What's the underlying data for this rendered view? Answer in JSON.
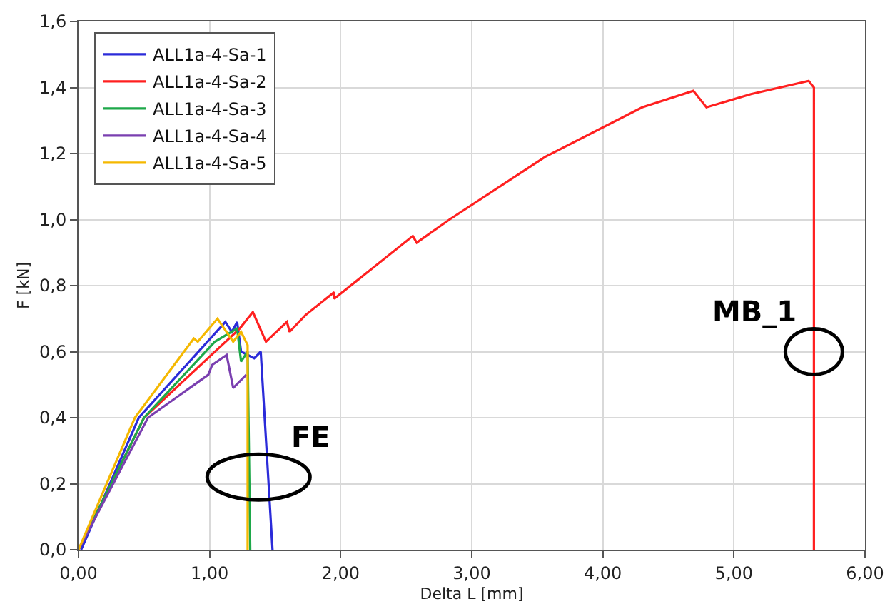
{
  "chart_data": {
    "type": "line",
    "xlabel": "Delta L [mm]",
    "ylabel": "F [kN]",
    "xlim": [
      0,
      6
    ],
    "ylim": [
      0,
      1.6
    ],
    "xticks": [
      {
        "value": 0,
        "label": "0,00"
      },
      {
        "value": 1,
        "label": "1,00"
      },
      {
        "value": 2,
        "label": "2,00"
      },
      {
        "value": 3,
        "label": "3,00"
      },
      {
        "value": 4,
        "label": "4,00"
      },
      {
        "value": 5,
        "label": "5,00"
      },
      {
        "value": 6,
        "label": "6,00"
      }
    ],
    "yticks": [
      {
        "value": 0,
        "label": "0,0"
      },
      {
        "value": 0.2,
        "label": "0,2"
      },
      {
        "value": 0.4,
        "label": "0,4"
      },
      {
        "value": 0.6,
        "label": "0,6"
      },
      {
        "value": 0.8,
        "label": "0,8"
      },
      {
        "value": 1.0,
        "label": "1,0"
      },
      {
        "value": 1.2,
        "label": "1,2"
      },
      {
        "value": 1.4,
        "label": "1,4"
      },
      {
        "value": 1.6,
        "label": "1,6"
      }
    ],
    "grid": true,
    "legend": "top left",
    "marker": "none",
    "line_style": "solid",
    "series": [
      {
        "name": "ALL1a-4-Sa-1",
        "color": "#2b2bd9",
        "x": [
          0.02,
          0.46,
          1.12,
          1.17,
          1.21,
          1.24,
          1.34,
          1.39,
          1.48
        ],
        "values": [
          0,
          0.4,
          0.69,
          0.66,
          0.69,
          0.6,
          0.58,
          0.6,
          0
        ]
      },
      {
        "name": "ALL1a-4-Sa-2",
        "color": "#ff2020",
        "x": [
          0,
          0.5,
          1.23,
          1.33,
          1.43,
          1.59,
          1.61,
          1.73,
          1.95,
          1.95,
          2.55,
          2.58,
          2.83,
          3.56,
          4.3,
          4.69,
          4.79,
          5.13,
          5.57,
          5.61,
          5.61
        ],
        "values": [
          0,
          0.4,
          0.67,
          0.72,
          0.63,
          0.69,
          0.66,
          0.71,
          0.78,
          0.76,
          0.95,
          0.93,
          1.0,
          1.19,
          1.34,
          1.39,
          1.34,
          1.38,
          1.42,
          1.4,
          0
        ]
      },
      {
        "name": "ALL1a-4-Sa-3",
        "color": "#1ea84a",
        "x": [
          0,
          0.5,
          1.04,
          1.21,
          1.24,
          1.29,
          1.31
        ],
        "values": [
          0,
          0.4,
          0.63,
          0.67,
          0.57,
          0.6,
          0
        ]
      },
      {
        "name": "ALL1a-4-Sa-4",
        "color": "#7a3fb0",
        "x": [
          0,
          0.53,
          0.99,
          1.02,
          1.13,
          1.18,
          1.28
        ],
        "values": [
          0,
          0.4,
          0.53,
          0.56,
          0.59,
          0.49,
          0.53
        ]
      },
      {
        "name": "ALL1a-4-Sa-5",
        "color": "#f5b800",
        "x": [
          0,
          0.43,
          0.88,
          0.91,
          1.06,
          1.18,
          1.24,
          1.29,
          1.29
        ],
        "values": [
          0,
          0.4,
          0.64,
          0.63,
          0.7,
          0.63,
          0.66,
          0.62,
          0
        ]
      }
    ],
    "annotations": [
      {
        "text": "FE",
        "x": 1.45,
        "y": 0.22
      },
      {
        "text": "MB_1",
        "x": 5.61,
        "y": 0.6
      }
    ]
  }
}
